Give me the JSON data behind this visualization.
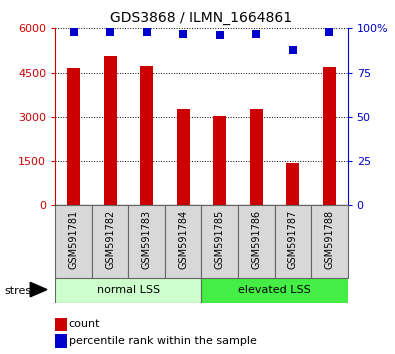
{
  "title": "GDS3868 / ILMN_1664861",
  "samples": [
    "GSM591781",
    "GSM591782",
    "GSM591783",
    "GSM591784",
    "GSM591785",
    "GSM591786",
    "GSM591787",
    "GSM591788"
  ],
  "counts": [
    4650,
    5050,
    4720,
    3280,
    3020,
    3250,
    1440,
    4700
  ],
  "percentiles": [
    98,
    98,
    98,
    97,
    96,
    97,
    88,
    98
  ],
  "ylim_left": [
    0,
    6000
  ],
  "ylim_right": [
    0,
    100
  ],
  "yticks_left": [
    0,
    1500,
    3000,
    4500,
    6000
  ],
  "yticks_right": [
    0,
    25,
    50,
    75,
    100
  ],
  "bar_color": "#cc0000",
  "dot_color": "#0000cc",
  "group1_label": "normal LSS",
  "group2_label": "elevated LSS",
  "group1_color": "#ccffcc",
  "group2_color": "#44ee44",
  "stress_label": "stress",
  "legend_count_label": "count",
  "legend_pct_label": "percentile rank within the sample",
  "cell_bg_color": "#d8d8d8",
  "bar_width": 0.35,
  "dot_size": 40,
  "fig_width": 3.95,
  "fig_height": 3.54
}
